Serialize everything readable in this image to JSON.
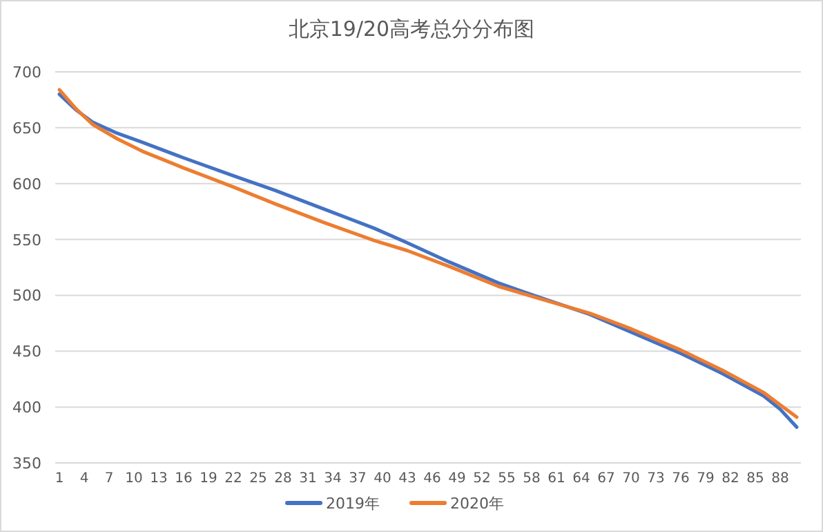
{
  "chart_data": {
    "type": "line",
    "title": "北京19/20高考总分分布图",
    "xlim": [
      0.5,
      90.5
    ],
    "xticks": [
      1,
      4,
      7,
      10,
      13,
      16,
      19,
      22,
      25,
      28,
      31,
      34,
      37,
      40,
      43,
      46,
      49,
      52,
      55,
      58,
      61,
      64,
      67,
      70,
      73,
      76,
      79,
      82,
      85,
      88
    ],
    "ylim": [
      350,
      700
    ],
    "yticks": [
      350,
      400,
      450,
      500,
      550,
      600,
      650,
      700
    ],
    "grid": "y",
    "legend": "bottom",
    "marker": "none",
    "line_style": "solid",
    "series": [
      {
        "name": "2019年",
        "color": "#4472c4",
        "x": [
          1,
          3,
          5,
          8,
          11,
          16,
          22,
          27,
          33,
          39,
          43,
          48,
          54,
          59,
          65,
          70,
          76,
          81,
          86,
          88,
          90
        ],
        "values": [
          680,
          666,
          655,
          645,
          637,
          623,
          607,
          594,
          577,
          560,
          547,
          530,
          511,
          498,
          483,
          467,
          448,
          430,
          410,
          398,
          382
        ]
      },
      {
        "name": "2020年",
        "color": "#ed7d31",
        "x": [
          1,
          3,
          5,
          8,
          11,
          16,
          22,
          27,
          33,
          39,
          43,
          48,
          54,
          59,
          65,
          70,
          76,
          81,
          86,
          88,
          90
        ],
        "values": [
          684,
          667,
          653,
          640,
          629,
          614,
          597,
          582,
          565,
          549,
          540,
          526,
          508,
          497,
          484,
          470,
          451,
          433,
          413,
          402,
          391
        ]
      }
    ]
  }
}
